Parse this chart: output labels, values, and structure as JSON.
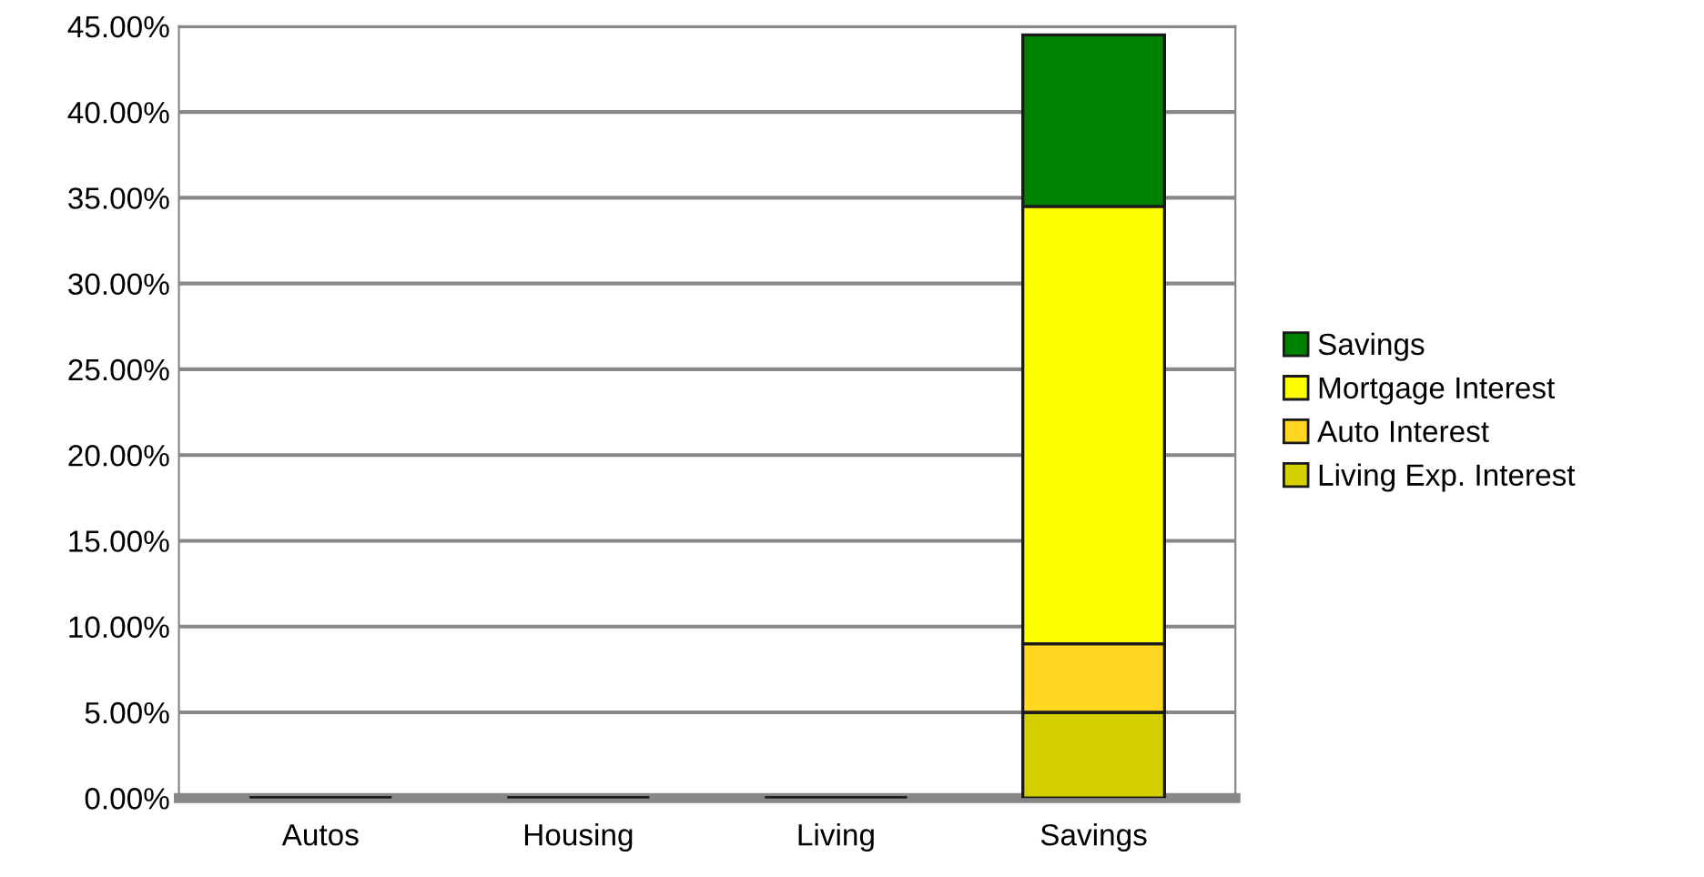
{
  "chart_data": {
    "type": "bar",
    "stacked": true,
    "categories": [
      "Autos",
      "Housing",
      "Living",
      "Savings"
    ],
    "series": [
      {
        "name": "Living Exp. Interest",
        "color": "#d4d000",
        "values": [
          null,
          null,
          null,
          5.0
        ]
      },
      {
        "name": "Auto Interest",
        "color": "#ffd620",
        "values": [
          null,
          null,
          null,
          4.0
        ]
      },
      {
        "name": "Mortgage Interest",
        "color": "#ffff00",
        "values": [
          null,
          null,
          null,
          25.5
        ]
      },
      {
        "name": "Savings",
        "color": "#008000",
        "values": [
          null,
          null,
          null,
          10.0
        ]
      }
    ],
    "ylim": [
      0,
      45
    ],
    "yticks": [
      {
        "value": 0,
        "label": "0.00%"
      },
      {
        "value": 5,
        "label": "5.00%"
      },
      {
        "value": 10,
        "label": "10.00%"
      },
      {
        "value": 15,
        "label": "15.00%"
      },
      {
        "value": 20,
        "label": "20.00%"
      },
      {
        "value": 25,
        "label": "25.00%"
      },
      {
        "value": 30,
        "label": "30.00%"
      },
      {
        "value": 35,
        "label": "35.00%"
      },
      {
        "value": 40,
        "label": "40.00%"
      },
      {
        "value": 45,
        "label": "45.00%"
      }
    ],
    "grid": "y",
    "legend": "right"
  }
}
